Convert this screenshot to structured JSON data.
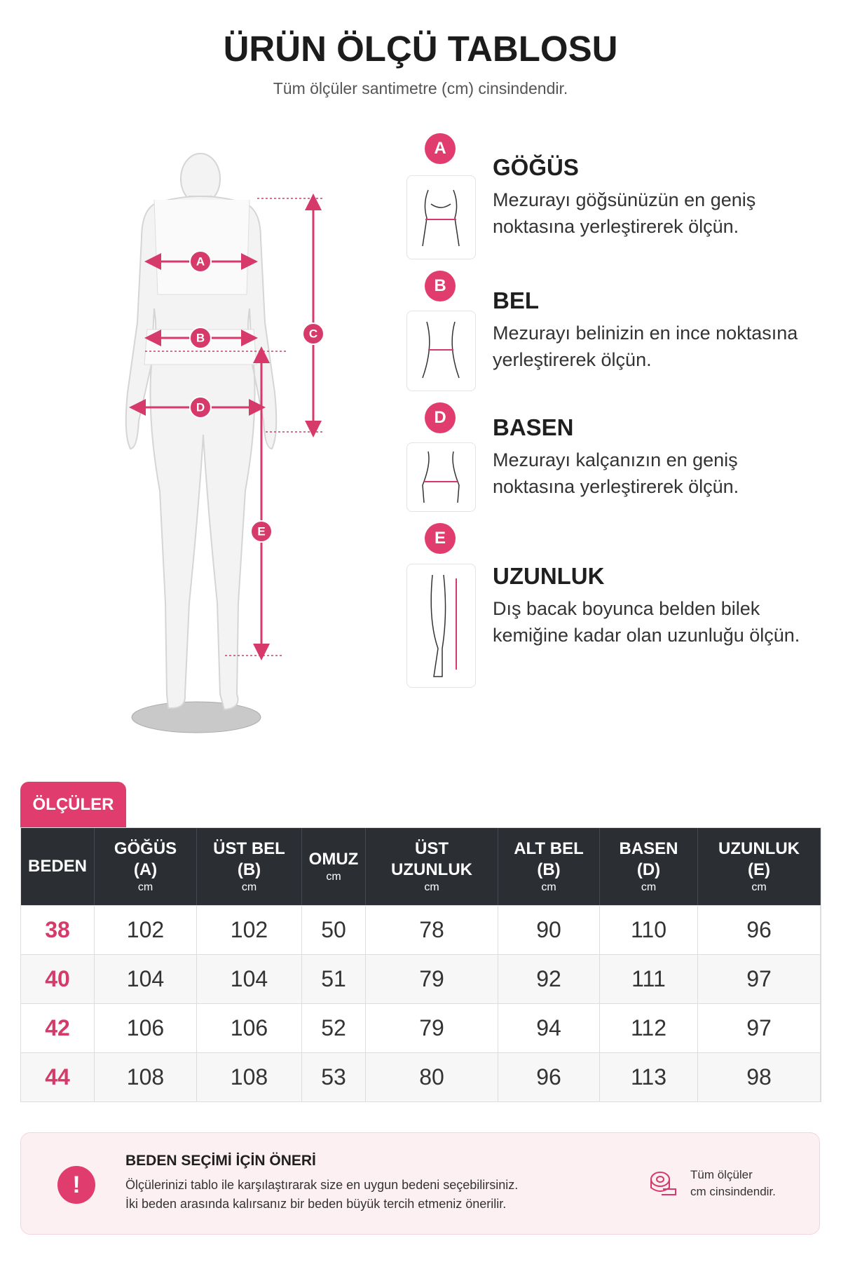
{
  "header": {
    "title": "ÜRÜN ÖLÇÜ TABLOSU",
    "subtitle": "Tüm ölçüler santimetre (cm) cinsindendir."
  },
  "figure": {
    "labels": [
      "A",
      "B",
      "C",
      "D",
      "E"
    ]
  },
  "guides": [
    {
      "letter": "A",
      "title": "GÖĞÜS",
      "lines": [
        "Mezurayı göğsünüzün en geniş",
        "noktasına yerleştirerek ölçün."
      ]
    },
    {
      "letter": "B",
      "title": "BEL",
      "lines": [
        "Mezurayı belinizin en ince noktasına",
        "yerleştirerek ölçün."
      ]
    },
    {
      "letter": "D",
      "title": "BASEN",
      "lines": [
        "Mezurayı kalçanızın en geniş",
        "noktasına yerleştirerek ölçün."
      ]
    },
    {
      "letter": "E",
      "title": "UZUNLUK",
      "lines": [
        "Dış bacak boyunca belden bilek",
        "kemiğine kadar olan uzunluğu ölçün."
      ]
    }
  ],
  "table": {
    "tab": "ÖLÇÜLER",
    "columns": [
      {
        "lines": [
          "BEDEN"
        ]
      },
      {
        "lines": [
          "GÖĞÜS",
          "(A)"
        ],
        "unit": "cm"
      },
      {
        "lines": [
          "ÜST BEL",
          "(B)"
        ],
        "unit": "cm"
      },
      {
        "lines": [
          "OMUZ"
        ],
        "unit": "cm"
      },
      {
        "lines": [
          "ÜST",
          "UZUNLUK"
        ],
        "unit": "cm"
      },
      {
        "lines": [
          "ALT BEL",
          "(B)"
        ],
        "unit": "cm"
      },
      {
        "lines": [
          "BASEN",
          "(D)"
        ],
        "unit": "cm"
      },
      {
        "lines": [
          "UZUNLUK",
          "(E)"
        ],
        "unit": "cm"
      }
    ],
    "rows": [
      [
        38,
        102,
        102,
        50,
        78,
        90,
        110,
        96
      ],
      [
        40,
        104,
        104,
        51,
        79,
        92,
        111,
        97
      ],
      [
        42,
        106,
        106,
        52,
        79,
        94,
        112,
        97
      ],
      [
        44,
        108,
        108,
        53,
        80,
        96,
        113,
        98
      ]
    ]
  },
  "note": {
    "icon": "!",
    "title": "BEDEN SEÇİMİ İÇİN ÖNERİ",
    "lines": [
      "Ölçülerinizi tablo ile karşılaştırarak size en uygun bedeni seçebilirsiniz.",
      "İki beden arasında kalırsanız bir beden büyük tercih etmeniz önerilir."
    ],
    "side": [
      "Tüm ölçüler",
      "cm cinsindendir."
    ]
  }
}
